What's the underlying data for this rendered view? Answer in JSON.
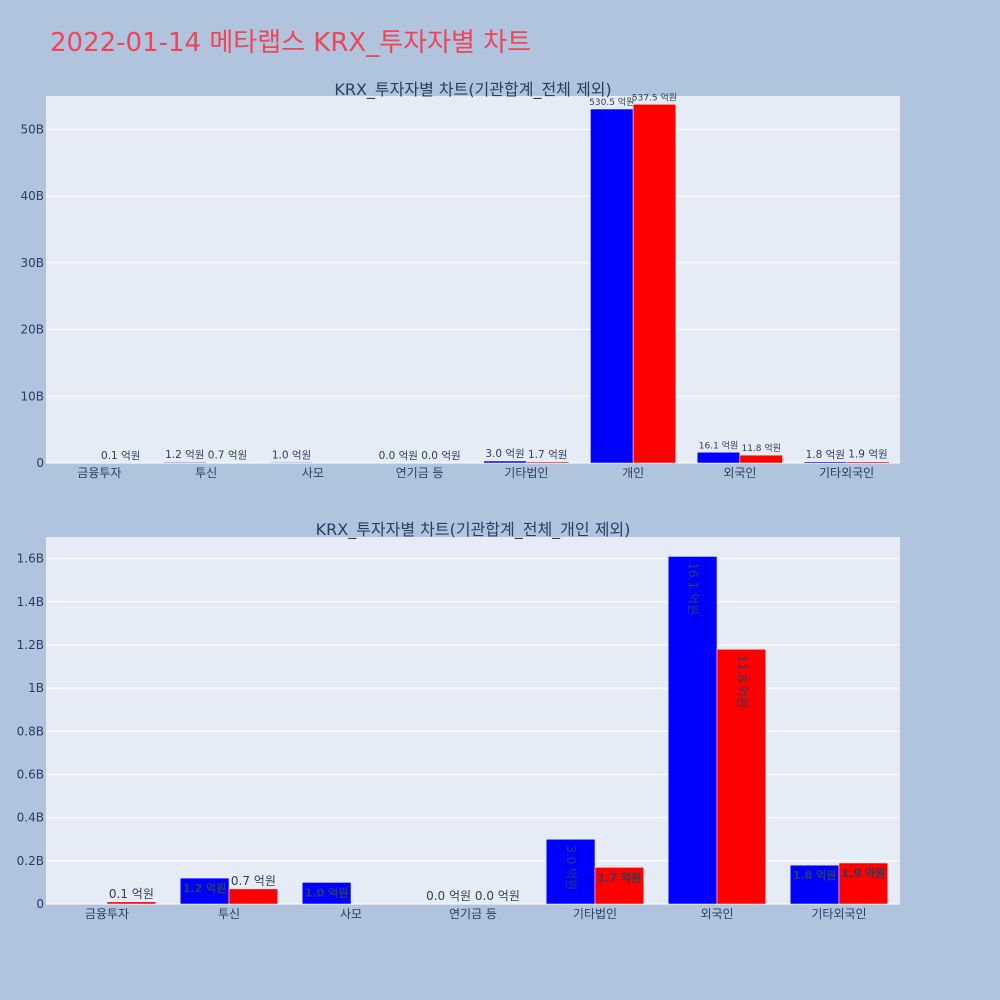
{
  "page": {
    "title": "2022-01-14 메타랩스 KRX_투자자별 차트",
    "title_color": "#ef4559",
    "background": "#b0c4de"
  },
  "chart_data": [
    {
      "type": "bar",
      "title": "KRX_투자자별 차트(기관합계_전체 제외)",
      "categories": [
        "금융투자",
        "투신",
        "사모",
        "연기금 등",
        "기타법인",
        "개인",
        "외국인",
        "기타외국인"
      ],
      "ylim": [
        0,
        55000000000
      ],
      "yticks": [
        0,
        10000000000,
        20000000000,
        30000000000,
        40000000000,
        50000000000
      ],
      "ytick_labels": [
        "0",
        "10B",
        "20B",
        "30B",
        "40B",
        "50B"
      ],
      "plot_bg": "#e5ecf6",
      "grid": true,
      "series": [
        {
          "color": "#0000ff",
          "values": [
            0,
            120000000,
            100000000,
            0,
            300000000,
            53050000000,
            1610000000,
            180000000
          ],
          "labels": [
            "",
            "1.2 억원",
            "1.0 억원",
            "0.0 억원",
            "3.0 억원",
            "530.5 억원",
            "16.1 억원",
            "1.8 억원"
          ]
        },
        {
          "color": "#ff0000",
          "values": [
            10000000,
            70000000,
            0,
            0,
            170000000,
            53750000000,
            1180000000,
            190000000
          ],
          "labels": [
            "0.1 억원",
            "0.7 억원",
            "",
            "0.0 억원",
            "1.7 억원",
            "537.5 억원",
            "11.8 억원",
            "1.9 억원"
          ]
        }
      ]
    },
    {
      "type": "bar",
      "title": "KRX_투자자별 차트(기관합계_전체_개인 제외)",
      "categories": [
        "금융투자",
        "투신",
        "사모",
        "연기금 등",
        "기타법인",
        "외국인",
        "기타외국인"
      ],
      "ylim": [
        0,
        1700000000
      ],
      "yticks": [
        0,
        200000000,
        400000000,
        600000000,
        800000000,
        1000000000,
        1200000000,
        1400000000,
        1600000000
      ],
      "ytick_labels": [
        "0",
        "0.2B",
        "0.4B",
        "0.6B",
        "0.8B",
        "1B",
        "1.2B",
        "1.4B",
        "1.6B"
      ],
      "plot_bg": "#e5ecf6",
      "grid": true,
      "series": [
        {
          "color": "#0000ff",
          "values": [
            0,
            120000000,
            100000000,
            0,
            300000000,
            1610000000,
            180000000
          ],
          "labels": [
            "",
            "1.2 억원",
            "1.0 억원",
            "0.0 억원",
            "3.0 억원",
            "16.1 억원",
            "1.8 억원"
          ]
        },
        {
          "color": "#ff0000",
          "values": [
            10000000,
            70000000,
            0,
            0,
            170000000,
            1180000000,
            190000000
          ],
          "labels": [
            "0.1 억원",
            "0.7 억원",
            "",
            "0.0 억원",
            "1.7 억원",
            "11.8 억원",
            "1.9 억원"
          ]
        }
      ]
    }
  ]
}
